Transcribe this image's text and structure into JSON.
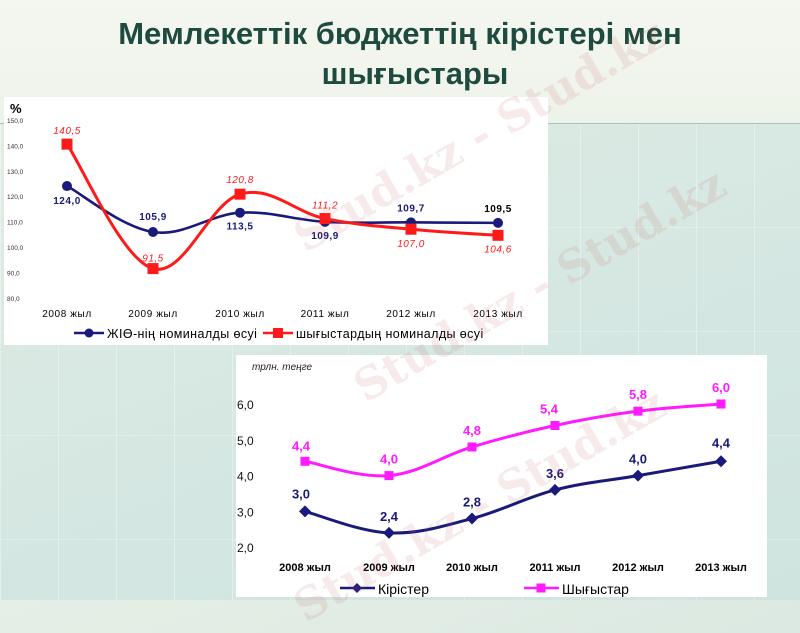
{
  "slide": {
    "title_line1": "Мемлекеттік бюджеттің кірістері мен",
    "title_line2": "шығыстары",
    "watermark": "Stud.kz - Stud.kz"
  },
  "colors": {
    "title": "#1f4a3f",
    "gdp_series": "#1a1a7a",
    "spend_series_top": "#ff1a1a",
    "revenue_series": "#1a1a7a",
    "expense_series": "#ff1aff"
  },
  "chart_data": [
    {
      "type": "line",
      "title": "",
      "ylabel": "%",
      "xlabel": "",
      "ylim": [
        80,
        150
      ],
      "yticks": [
        "150,0",
        "140,0",
        "130,0",
        "120,0",
        "110,0",
        "100,0",
        "90,0",
        "80,0"
      ],
      "categories": [
        "2008 жыл",
        "2009 жыл",
        "2010 жыл",
        "2011 жыл",
        "2012 жыл",
        "2013 жыл"
      ],
      "series": [
        {
          "name": "ЖІӨ-нің номиналды өсуі",
          "values": [
            124.0,
            105.9,
            113.5,
            109.9,
            109.7,
            109.5
          ],
          "labels": [
            "124,0",
            "105,9",
            "113,5",
            "109,9",
            "109,7",
            "109,5"
          ],
          "marker": "circle"
        },
        {
          "name": "шығыстардың номиналды өсуі",
          "values": [
            140.5,
            91.5,
            120.8,
            111.2,
            107.0,
            104.6
          ],
          "labels": [
            "140,5",
            "91,5",
            "120,8",
            "111,2",
            "107,0",
            "104,6"
          ],
          "marker": "square"
        }
      ],
      "grid": false,
      "legend_position": "bottom"
    },
    {
      "type": "line",
      "title": "",
      "ylabel": "трлн. теңге",
      "xlabel": "",
      "ylim": [
        2.0,
        6.0
      ],
      "yticks": [
        "6,0",
        "5,0",
        "4,0",
        "3,0",
        "2,0"
      ],
      "categories": [
        "2008 жыл",
        "2009 жыл",
        "2010 жыл",
        "2011 жыл",
        "2012 жыл",
        "2013 жыл"
      ],
      "series": [
        {
          "name": "Кірістер",
          "values": [
            3.0,
            2.4,
            2.8,
            3.6,
            4.0,
            4.4
          ],
          "labels": [
            "3,0",
            "2,4",
            "2,8",
            "3,6",
            "4,0",
            "4,4"
          ],
          "marker": "diamond"
        },
        {
          "name": "Шығыстар",
          "values": [
            4.4,
            4.0,
            4.8,
            5.4,
            5.8,
            6.0
          ],
          "labels": [
            "4,4",
            "4,0",
            "4,8",
            "5,4",
            "5,8",
            "6,0"
          ],
          "marker": "square"
        }
      ],
      "grid": false,
      "legend_position": "bottom"
    }
  ]
}
